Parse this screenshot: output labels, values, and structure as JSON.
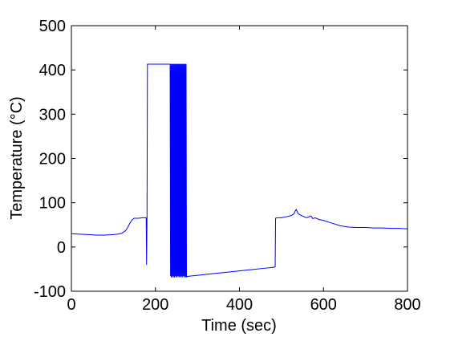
{
  "chart_data": {
    "type": "line",
    "title": "",
    "xlabel": "Time (sec)",
    "ylabel": "Temperature (°C)",
    "xlim": [
      0,
      800
    ],
    "ylim": [
      -100,
      500
    ],
    "xticks": [
      "0",
      "200",
      "400",
      "600",
      "800"
    ],
    "yticks": [
      "500",
      "400",
      "300",
      "200",
      "100",
      "0",
      "-100"
    ],
    "grid": false,
    "legend": "none",
    "series": [
      {
        "color": "#0000ff",
        "x": [
          0,
          20,
          40,
          60,
          80,
          100,
          110,
          120,
          125,
          130,
          135,
          140,
          145,
          150,
          160,
          170,
          178,
          179,
          180,
          181,
          182,
          183,
          185,
          190,
          200,
          210,
          220,
          230,
          235,
          236,
          237,
          238,
          239,
          240,
          241,
          242,
          243,
          244,
          245,
          246,
          247,
          248,
          249,
          250,
          251,
          252,
          253,
          254,
          255,
          256,
          257,
          258,
          259,
          260,
          261,
          262,
          263,
          264,
          265,
          266,
          267,
          268,
          269,
          270,
          271,
          272,
          273,
          274,
          275,
          280,
          300,
          320,
          340,
          360,
          380,
          400,
          420,
          440,
          460,
          480,
          484,
          485,
          486,
          490,
          500,
          510,
          520,
          525,
          530,
          532,
          535,
          540,
          545,
          550,
          555,
          560,
          565,
          570,
          575,
          580,
          590,
          600,
          620,
          640,
          660,
          680,
          700,
          720,
          740,
          760,
          780,
          800
        ],
        "y": [
          30,
          29,
          28,
          27,
          27,
          28,
          29,
          31,
          34,
          38,
          46,
          55,
          62,
          65,
          65,
          66,
          66,
          -40,
          66,
          413,
          413,
          413,
          413,
          413,
          413,
          413,
          413,
          413,
          413,
          -65,
          413,
          -68,
          413,
          -68,
          413,
          -65,
          413,
          -68,
          413,
          -68,
          413,
          -65,
          413,
          -68,
          413,
          -67,
          413,
          -65,
          413,
          -68,
          413,
          -66,
          413,
          -68,
          413,
          -66,
          413,
          -68,
          413,
          -65,
          413,
          -68,
          413,
          -66,
          413,
          -68,
          413,
          -68,
          -67,
          -66,
          -64,
          -62,
          -60,
          -58,
          -56,
          -54,
          -52,
          -50,
          -48,
          -46,
          -45,
          -45,
          65,
          66,
          66,
          68,
          70,
          72,
          75,
          80,
          85,
          75,
          72,
          70,
          68,
          66,
          68,
          70,
          64,
          66,
          62,
          60,
          54,
          48,
          45,
          44,
          44,
          43,
          43,
          42,
          42,
          41
        ]
      }
    ]
  }
}
